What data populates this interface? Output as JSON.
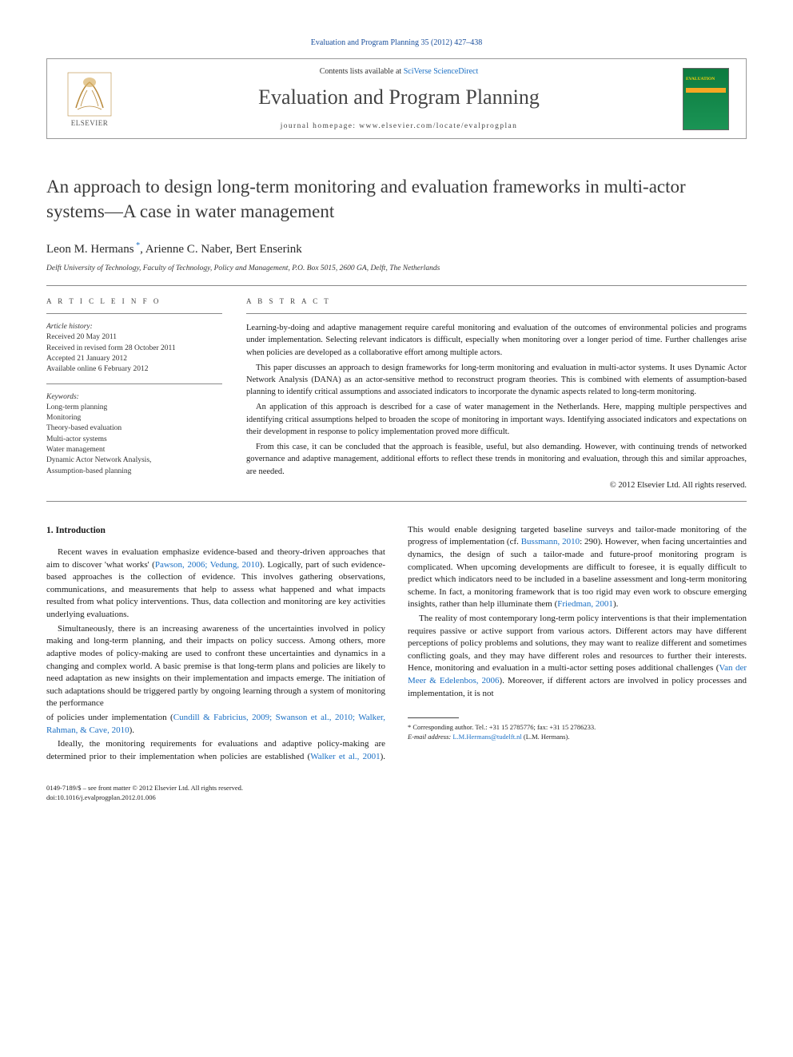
{
  "journal_ref": "Evaluation and Program Planning 35 (2012) 427–438",
  "header": {
    "contents_available": "Contents lists available at",
    "contents_link": "SciVerse ScienceDirect",
    "journal_name": "Evaluation and Program Planning",
    "homepage_label": "journal homepage: www.elsevier.com/locate/evalprogplan",
    "publisher": "ELSEVIER",
    "cover_text": "EVALUATION"
  },
  "title": "An approach to design long-term monitoring and evaluation frameworks in multi-actor systems—A case in water management",
  "authors_html": "Leon M. Hermans *, Arienne C. Naber, Bert Enserink",
  "affiliation": "Delft University of Technology, Faculty of Technology, Policy and Management, P.O. Box 5015, 2600 GA, Delft, The Netherlands",
  "article_info": {
    "label": "A R T I C L E   I N F O",
    "history_hdr": "Article history:",
    "history": [
      "Received 20 May 2011",
      "Received in revised form 28 October 2011",
      "Accepted 21 January 2012",
      "Available online 6 February 2012"
    ],
    "keywords_hdr": "Keywords:",
    "keywords": [
      "Long-term planning",
      "Monitoring",
      "Theory-based evaluation",
      "Multi-actor systems",
      "Water management",
      "Dynamic Actor Network Analysis,",
      "Assumption-based planning"
    ]
  },
  "abstract": {
    "label": "A B S T R A C T",
    "paras": [
      "Learning-by-doing and adaptive management require careful monitoring and evaluation of the outcomes of environmental policies and programs under implementation. Selecting relevant indicators is difficult, especially when monitoring over a longer period of time. Further challenges arise when policies are developed as a collaborative effort among multiple actors.",
      "This paper discusses an approach to design frameworks for long-term monitoring and evaluation in multi-actor systems. It uses Dynamic Actor Network Analysis (DANA) as an actor-sensitive method to reconstruct program theories. This is combined with elements of assumption-based planning to identify critical assumptions and associated indicators to incorporate the dynamic aspects related to long-term monitoring.",
      "An application of this approach is described for a case of water management in the Netherlands. Here, mapping multiple perspectives and identifying critical assumptions helped to broaden the scope of monitoring in important ways. Identifying associated indicators and expectations on their development in response to policy implementation proved more difficult.",
      "From this case, it can be concluded that the approach is feasible, useful, but also demanding. However, with continuing trends of networked governance and adaptive management, additional efforts to reflect these trends in monitoring and evaluation, through this and similar approaches, are needed."
    ],
    "copyright": "© 2012 Elsevier Ltd. All rights reserved."
  },
  "intro": {
    "heading": "1. Introduction",
    "paras": [
      "Recent waves in evaluation emphasize evidence-based and theory-driven approaches that aim to discover 'what works' (<span class='cite'>Pawson, 2006; Vedung, 2010</span>). Logically, part of such evidence-based approaches is the collection of evidence. This involves gathering observations, communications, and measurements that help to assess what happened and what impacts resulted from what policy interventions. Thus, data collection and monitoring are key activities underlying evaluations.",
      "Simultaneously, there is an increasing awareness of the uncertainties involved in policy making and long-term planning, and their impacts on policy success. Among others, more adaptive modes of policy-making are used to confront these uncertainties and dynamics in a changing and complex world. A basic premise is that long-term plans and policies are likely to need adaptation as new insights on their implementation and impacts emerge. The initiation of such adaptations should be triggered partly by ongoing learning through a system of monitoring the performance",
      "of policies under implementation (<span class='cite'>Cundill & Fabricius, 2009; Swanson et al., 2010; Walker, Rahman, & Cave, 2010</span>).",
      "Ideally, the monitoring requirements for evaluations and adaptive policy-making are determined prior to their implementation when policies are established (<span class='cite'>Walker et al., 2001</span>). This would enable designing targeted baseline surveys and tailor-made monitoring of the progress of implementation (cf. <span class='cite'>Bussmann, 2010</span>: 290). However, when facing uncertainties and dynamics, the design of such a tailor-made and future-proof monitoring program is complicated. When upcoming developments are difficult to foresee, it is equally difficult to predict which indicators need to be included in a baseline assessment and long-term monitoring scheme. In fact, a monitoring framework that is too rigid may even work to obscure emerging insights, rather than help illuminate them (<span class='cite'>Friedman, 2001</span>).",
      "The reality of most contemporary long-term policy interventions is that their implementation requires passive or active support from various actors. Different actors may have different perceptions of policy problems and solutions, they may want to realize different and sometimes conflicting goals, and they may have different roles and resources to further their interests. Hence, monitoring and evaluation in a multi-actor setting poses additional challenges (<span class='cite'>Van der Meer & Edelenbos, 2006</span>). Moreover, if different actors are involved in policy processes and implementation, it is not"
    ]
  },
  "footnote": {
    "corr": "* Corresponding author. Tel.: +31 15 2785776; fax: +31 15 2786233.",
    "email_label": "E-mail address:",
    "email": "L.M.Hermans@tudelft.nl",
    "email_who": "(L.M. Hermans)."
  },
  "footer": {
    "line1": "0149-7189/$ – see front matter © 2012 Elsevier Ltd. All rights reserved.",
    "line2": "doi:10.1016/j.evalprogplan.2012.01.006"
  },
  "colors": {
    "link": "#1a6fc4",
    "journal_ref": "#1a4f9c",
    "cover_bg": "#1a9455",
    "cover_text": "#fcd405",
    "cover_band": "#f5a623"
  }
}
